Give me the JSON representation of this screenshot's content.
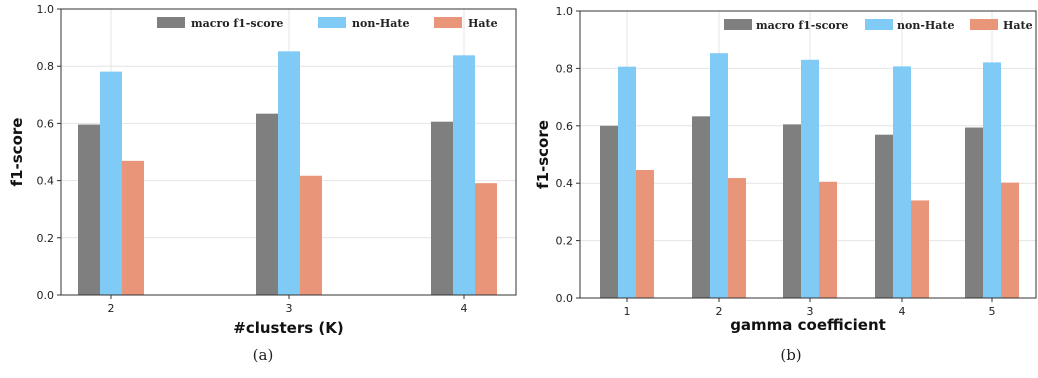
{
  "colors": {
    "macro": "#7f7f7f",
    "nonhate": "#7fcbf6",
    "hate": "#e9957a",
    "grid": "#e4e4e4"
  },
  "chart_data": [
    {
      "type": "bar",
      "caption": "(a)",
      "xlabel": "#clusters (K)",
      "ylabel": "f1-score",
      "ylim": [
        0,
        1.0
      ],
      "yticks": [
        "0.0",
        "0.2",
        "0.4",
        "0.6",
        "0.8",
        "1.0"
      ],
      "grid": true,
      "legend_position": "top",
      "categories": [
        "2",
        "3",
        "4"
      ],
      "series": [
        {
          "name": "macro f1-score",
          "values": [
            0.596,
            0.634,
            0.606
          ]
        },
        {
          "name": "non-Hate",
          "values": [
            0.781,
            0.852,
            0.838
          ]
        },
        {
          "name": "Hate",
          "values": [
            0.469,
            0.417,
            0.391
          ]
        }
      ]
    },
    {
      "type": "bar",
      "caption": "(b)",
      "xlabel": "gamma coefficient",
      "ylabel": "f1-score",
      "ylim": [
        0,
        1.0
      ],
      "yticks": [
        "0.0",
        "0.2",
        "0.4",
        "0.6",
        "0.8",
        "1.0"
      ],
      "grid": true,
      "legend_position": "top",
      "categories": [
        "1",
        "2",
        "3",
        "4",
        "5"
      ],
      "series": [
        {
          "name": "macro f1-score",
          "values": [
            0.6,
            0.633,
            0.605,
            0.569,
            0.594
          ]
        },
        {
          "name": "non-Hate",
          "values": [
            0.806,
            0.853,
            0.83,
            0.807,
            0.821
          ]
        },
        {
          "name": "Hate",
          "values": [
            0.446,
            0.418,
            0.405,
            0.34,
            0.402
          ]
        }
      ]
    }
  ]
}
